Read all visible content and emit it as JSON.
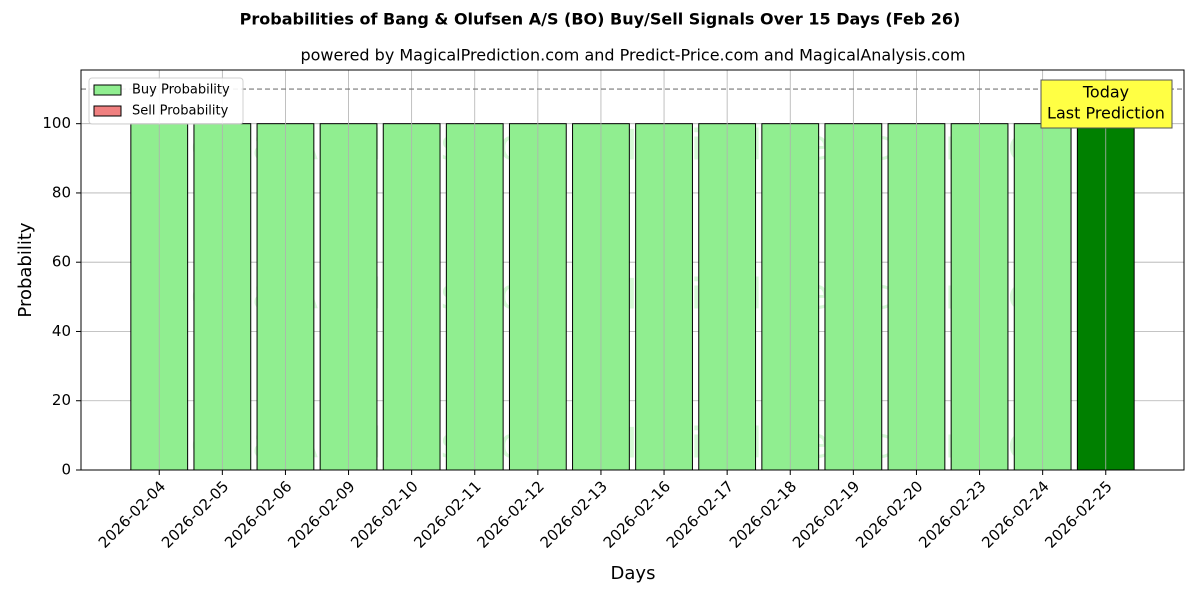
{
  "chart_data": {
    "type": "bar",
    "title": "Probabilities of Bang & Olufsen A/S (BO) Buy/Sell Signals Over 15 Days (Feb 26)",
    "subtitle": "powered by MagicalPrediction.com and Predict-Price.com and MagicalAnalysis.com",
    "x_label": "Days",
    "y_label": "Probability",
    "categories": [
      "2026-02-04",
      "2026-02-05",
      "2026-02-06",
      "2026-02-09",
      "2026-02-10",
      "2026-02-11",
      "2026-02-12",
      "2026-02-13",
      "2026-02-16",
      "2026-02-17",
      "2026-02-18",
      "2026-02-19",
      "2026-02-20",
      "2026-02-23",
      "2026-02-24",
      "2026-02-25"
    ],
    "series": [
      {
        "name": "Buy Probability",
        "color": "#90ee90",
        "last_color": "#008000",
        "values": [
          100,
          100,
          100,
          100,
          100,
          100,
          100,
          100,
          100,
          100,
          100,
          100,
          100,
          100,
          100,
          100
        ]
      },
      {
        "name": "Sell Probability",
        "color": "#f08080",
        "last_color": "#f08080",
        "values": [
          0,
          0,
          0,
          0,
          0,
          0,
          0,
          0,
          0,
          0,
          0,
          0,
          0,
          0,
          0,
          0
        ]
      }
    ],
    "ylim": [
      0,
      115.5
    ],
    "yticks": [
      0,
      20,
      40,
      60,
      80,
      100
    ],
    "grid": true,
    "hline": 110,
    "legend": "upper left",
    "annotation": [
      "Today",
      "Last Prediction"
    ],
    "watermarks": [
      "MagicalAnalysis.com",
      "MagicalPrediction.com"
    ]
  }
}
